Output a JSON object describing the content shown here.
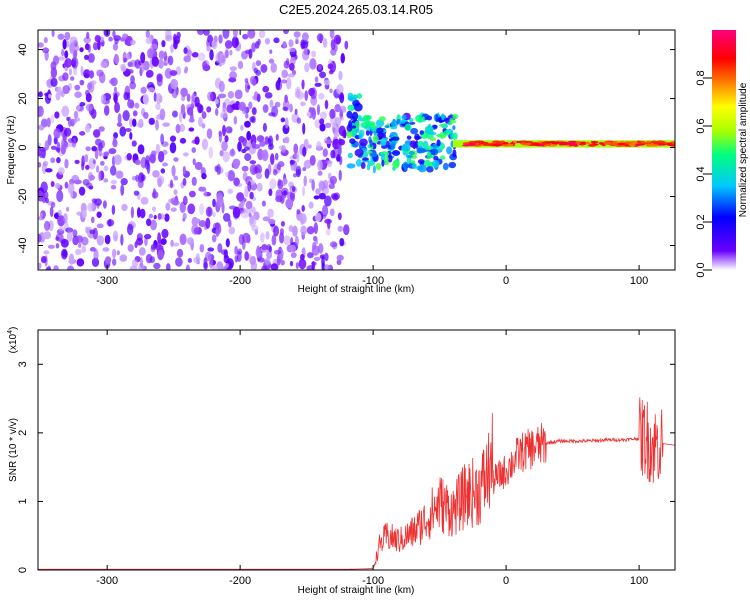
{
  "figure": {
    "title": "C2E5.2024.265.03.14.R05"
  },
  "chart_data": [
    {
      "type": "heatmap",
      "xlabel": "Height of straight line (km)",
      "ylabel": "Frequency (Hz)",
      "xlim": [
        -352,
        127
      ],
      "ylim": [
        -50,
        48
      ],
      "xticks": [
        -300,
        -200,
        -100,
        0,
        100
      ],
      "yticks": [
        -40,
        -20,
        0,
        20,
        40
      ],
      "colorbar": {
        "label": "Normalized spectral amplitude",
        "range": [
          0,
          1
        ],
        "ticks": [
          "0.0",
          "0.2",
          "0.4",
          "0.6",
          "0.8"
        ],
        "colormap": [
          "#ffffff",
          "#6a00ff",
          "#0000ff",
          "#00c8ff",
          "#00ff80",
          "#aaff00",
          "#ffff00",
          "#ff8000",
          "#ff0000",
          "#ff0080"
        ]
      },
      "regions": [
        {
          "x_range": [
            -352,
            -120
          ],
          "f_range": [
            -50,
            48
          ],
          "level": 0.1,
          "note_color": "#8a3cf0"
        },
        {
          "x_range": [
            -112,
            -40
          ],
          "f_range": [
            -10,
            15
          ],
          "level": 0.35,
          "note_color": "#00c8ff"
        },
        {
          "x_range": [
            -40,
            127
          ],
          "f_range": [
            0,
            3
          ],
          "level": 0.9,
          "note_color": "#ff0000"
        }
      ]
    },
    {
      "type": "line",
      "xlabel": "Height of straight line (km)",
      "ylabel": "SNR (10 * v/v)",
      "yscale_label": "(x10",
      "yscale_exp": "4",
      "yscale_close": ")",
      "xlim": [
        -352,
        127
      ],
      "ylim": [
        0,
        3.5
      ],
      "xticks": [
        -300,
        -200,
        -100,
        0,
        100
      ],
      "yticks": [
        0,
        1,
        2,
        3
      ],
      "color": "#ee3030",
      "series": [
        {
          "x": [
            -352,
            -300,
            -200,
            -120,
            -100,
            -95,
            -90,
            -80,
            -70,
            -60,
            -50,
            -40,
            -30,
            -20,
            -15,
            -10,
            0,
            10,
            20,
            30,
            40,
            60,
            80,
            90,
            100,
            105,
            110,
            115,
            127
          ],
          "y": [
            0.01,
            0.01,
            0.01,
            0.01,
            0.02,
            0.3,
            0.4,
            0.35,
            0.45,
            0.6,
            0.8,
            0.7,
            0.9,
            0.95,
            1.1,
            1.3,
            1.45,
            1.7,
            1.78,
            1.85,
            1.88,
            1.88,
            1.9,
            1.9,
            1.92,
            1.95,
            1.8,
            1.85,
            1.82
          ]
        }
      ]
    }
  ]
}
